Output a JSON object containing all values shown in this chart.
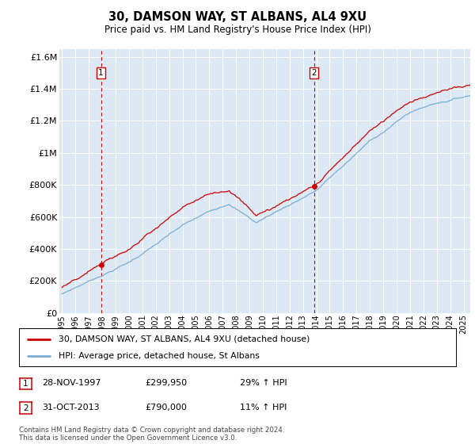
{
  "title": "30, DAMSON WAY, ST ALBANS, AL4 9XU",
  "subtitle": "Price paid vs. HM Land Registry's House Price Index (HPI)",
  "legend_line1": "30, DAMSON WAY, ST ALBANS, AL4 9XU (detached house)",
  "legend_line2": "HPI: Average price, detached house, St Albans",
  "sale1_date_label": "28-NOV-1997",
  "sale1_price_label": "£299,950",
  "sale1_pct_label": "29% ↑ HPI",
  "sale2_date_label": "31-OCT-2013",
  "sale2_price_label": "£790,000",
  "sale2_pct_label": "11% ↑ HPI",
  "sale1_year": 1997.91,
  "sale1_price": 299950,
  "sale2_year": 2013.83,
  "sale2_price": 790000,
  "ylim": [
    0,
    1650000
  ],
  "xlim": [
    1994.8,
    2025.5
  ],
  "bg_color": "#dce9f5",
  "line_red": "#cc0000",
  "line_blue": "#7aadd4",
  "vline_color": "#cc0000",
  "footer": "Contains HM Land Registry data © Crown copyright and database right 2024.\nThis data is licensed under the Open Government Licence v3.0.",
  "yticks": [
    0,
    200000,
    400000,
    600000,
    800000,
    1000000,
    1200000,
    1400000,
    1600000
  ],
  "ytick_labels": [
    "£0",
    "£200K",
    "£400K",
    "£600K",
    "£800K",
    "£1M",
    "£1.2M",
    "£1.4M",
    "£1.6M"
  ]
}
